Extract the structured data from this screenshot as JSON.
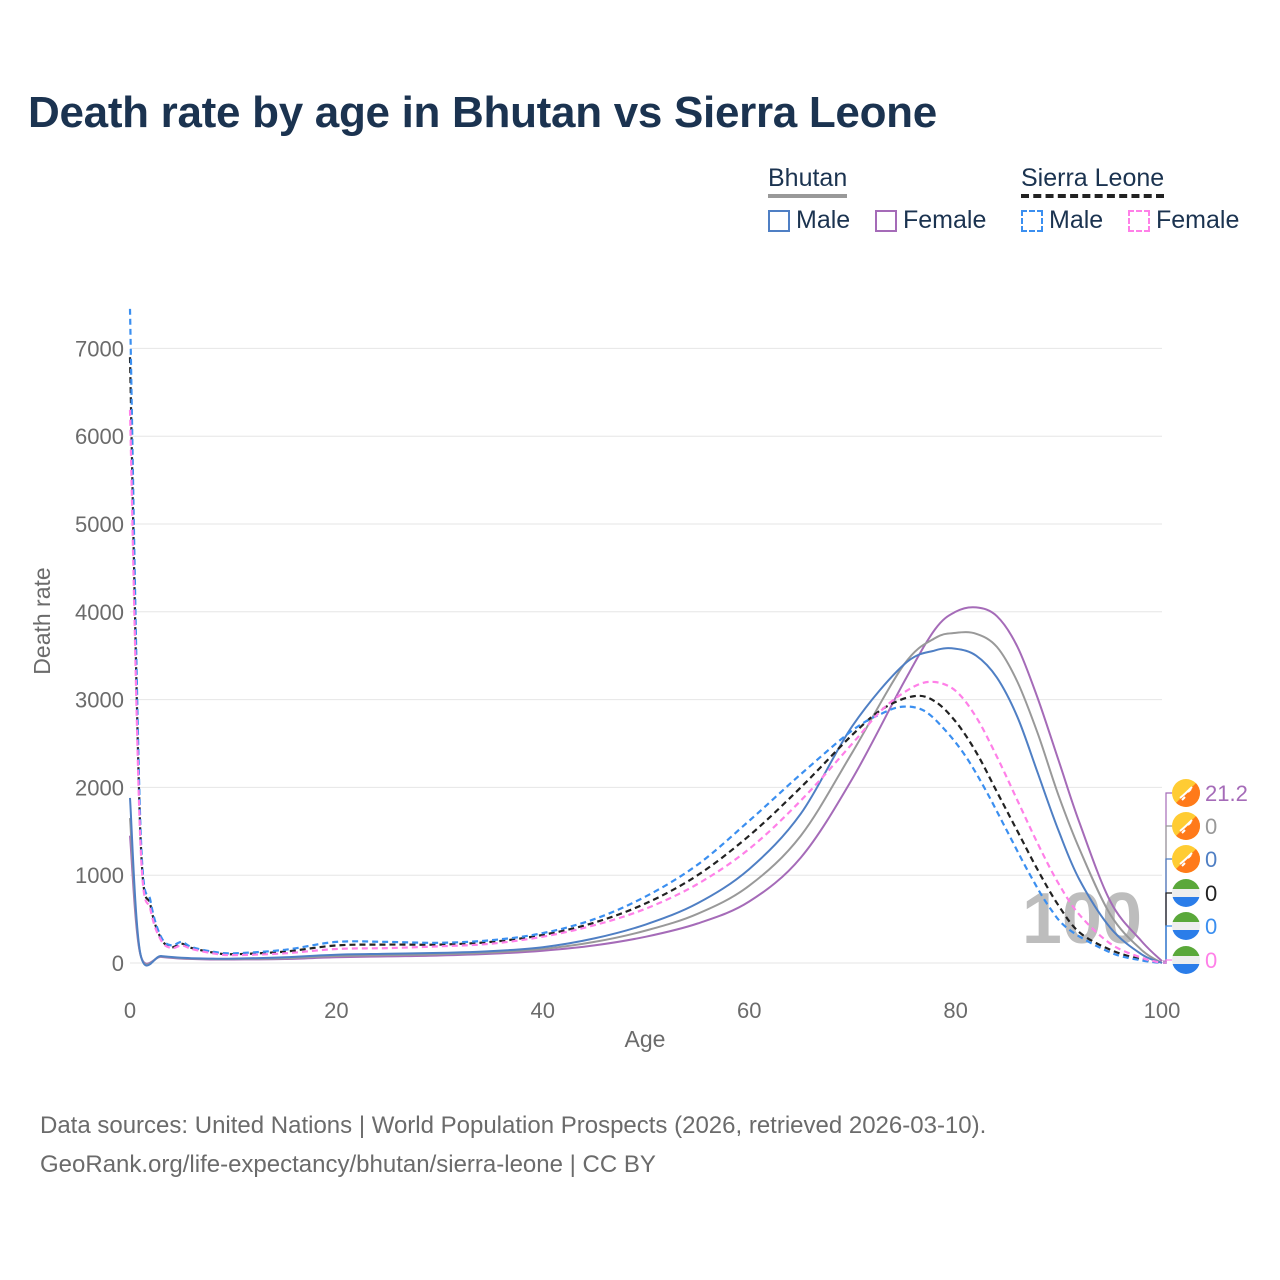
{
  "title": "Death rate by age in Bhutan vs Sierra Leone",
  "legend": {
    "groups": [
      {
        "name": "Bhutan",
        "line_color": "#999999",
        "line_style": "solid",
        "items": [
          {
            "label": "Male",
            "color": "#4f7fc4",
            "style": "solid"
          },
          {
            "label": "Female",
            "color": "#a56bb8",
            "style": "solid"
          }
        ]
      },
      {
        "name": "Sierra Leone",
        "line_color": "#222222",
        "line_style": "dashed",
        "items": [
          {
            "label": "Male",
            "color": "#3b8ff0",
            "style": "dashed"
          },
          {
            "label": "Female",
            "color": "#ff80e8",
            "style": "dashed"
          }
        ]
      }
    ]
  },
  "chart_data": {
    "type": "line",
    "title": "Death rate by age in Bhutan vs Sierra Leone",
    "xlabel": "Age",
    "ylabel": "Death rate",
    "xlim": [
      0,
      100
    ],
    "ylim": [
      0,
      7400
    ],
    "xticks": [
      0,
      20,
      40,
      60,
      80,
      100
    ],
    "yticks": [
      0,
      1000,
      2000,
      3000,
      4000,
      5000,
      6000,
      7000
    ],
    "grid": true,
    "year_watermark": "100",
    "series": [
      {
        "name": "Bhutan Female",
        "color": "#a56bb8",
        "dash": "solid",
        "end_label": "21.2",
        "end_flag": "bhutan",
        "x": [
          0,
          1,
          3,
          5,
          8,
          10,
          15,
          20,
          25,
          30,
          35,
          40,
          45,
          50,
          55,
          60,
          65,
          70,
          75,
          78,
          80,
          82,
          84,
          86,
          88,
          90,
          92,
          95,
          98,
          100
        ],
        "y": [
          1450,
          100,
          70,
          50,
          40,
          40,
          45,
          65,
          75,
          85,
          105,
          140,
          200,
          300,
          450,
          700,
          1200,
          2100,
          3200,
          3800,
          4000,
          4050,
          3950,
          3600,
          3000,
          2300,
          1600,
          700,
          250,
          21.2
        ]
      },
      {
        "name": "Bhutan Total",
        "color": "#999999",
        "dash": "solid",
        "end_label": "0",
        "end_flag": "bhutan",
        "x": [
          0,
          1,
          3,
          5,
          8,
          10,
          15,
          20,
          25,
          30,
          35,
          40,
          45,
          50,
          55,
          60,
          65,
          70,
          75,
          78,
          80,
          82,
          84,
          86,
          88,
          90,
          92,
          95,
          98,
          100
        ],
        "y": [
          1650,
          105,
          75,
          55,
          45,
          45,
          55,
          80,
          90,
          100,
          120,
          160,
          240,
          370,
          560,
          880,
          1450,
          2400,
          3400,
          3700,
          3760,
          3750,
          3600,
          3200,
          2600,
          1900,
          1300,
          550,
          150,
          0
        ]
      },
      {
        "name": "Bhutan Male",
        "color": "#4f7fc4",
        "dash": "solid",
        "end_label": "0",
        "end_flag": "bhutan",
        "x": [
          0,
          1,
          3,
          5,
          8,
          10,
          15,
          20,
          25,
          30,
          35,
          40,
          45,
          50,
          55,
          60,
          65,
          70,
          75,
          78,
          80,
          82,
          84,
          86,
          88,
          90,
          92,
          95,
          98,
          100
        ],
        "y": [
          1880,
          110,
          80,
          60,
          50,
          50,
          65,
          95,
          105,
          115,
          135,
          180,
          280,
          440,
          680,
          1070,
          1700,
          2700,
          3400,
          3560,
          3580,
          3500,
          3250,
          2800,
          2150,
          1500,
          950,
          400,
          100,
          0
        ]
      },
      {
        "name": "Sierra Leone Total",
        "color": "#222222",
        "dash": "dashed",
        "end_label": "0",
        "end_flag": "sierra-leone",
        "x": [
          0,
          1,
          2,
          3,
          4,
          5,
          6,
          8,
          10,
          15,
          20,
          25,
          30,
          35,
          40,
          45,
          50,
          55,
          60,
          65,
          70,
          73,
          76,
          78,
          80,
          82,
          84,
          86,
          88,
          90,
          92,
          95,
          98,
          100
        ],
        "y": [
          6900,
          1500,
          650,
          280,
          180,
          220,
          170,
          120,
          100,
          130,
          200,
          210,
          210,
          240,
          320,
          460,
          680,
          1000,
          1450,
          2000,
          2600,
          2900,
          3040,
          2980,
          2750,
          2400,
          1950,
          1500,
          1050,
          650,
          350,
          150,
          40,
          0
        ]
      },
      {
        "name": "Sierra Leone Male",
        "color": "#3b8ff0",
        "dash": "dashed",
        "end_label": "0",
        "end_flag": "sierra-leone",
        "x": [
          0,
          1,
          2,
          3,
          4,
          5,
          6,
          8,
          10,
          15,
          20,
          25,
          30,
          35,
          40,
          45,
          50,
          55,
          60,
          65,
          70,
          73,
          75,
          77,
          79,
          81,
          83,
          85,
          87,
          89,
          91,
          95,
          98,
          100
        ],
        "y": [
          7450,
          1600,
          700,
          300,
          200,
          240,
          180,
          130,
          110,
          150,
          240,
          240,
          230,
          260,
          340,
          500,
          760,
          1120,
          1620,
          2150,
          2650,
          2850,
          2920,
          2870,
          2650,
          2350,
          1950,
          1500,
          1050,
          650,
          380,
          120,
          30,
          0
        ]
      },
      {
        "name": "Sierra Leone Female",
        "color": "#ff80e8",
        "dash": "dashed",
        "end_label": "0",
        "end_flag": "sierra-leone",
        "x": [
          0,
          1,
          2,
          3,
          4,
          5,
          6,
          8,
          10,
          15,
          20,
          25,
          30,
          35,
          40,
          45,
          50,
          55,
          60,
          65,
          70,
          73,
          76,
          78,
          80,
          82,
          84,
          86,
          88,
          90,
          92,
          95,
          98,
          100
        ],
        "y": [
          6300,
          1400,
          600,
          260,
          170,
          200,
          160,
          110,
          90,
          110,
          160,
          170,
          190,
          220,
          300,
          430,
          620,
          900,
          1300,
          1850,
          2500,
          2900,
          3150,
          3200,
          3100,
          2800,
          2350,
          1850,
          1350,
          900,
          550,
          220,
          60,
          0
        ]
      }
    ]
  },
  "source": {
    "line1": "Data sources: United Nations | World Population Prospects (2026, retrieved 2026-03-10).",
    "line2": "GeoRank.org/life-expectancy/bhutan/sierra-leone | CC BY"
  }
}
